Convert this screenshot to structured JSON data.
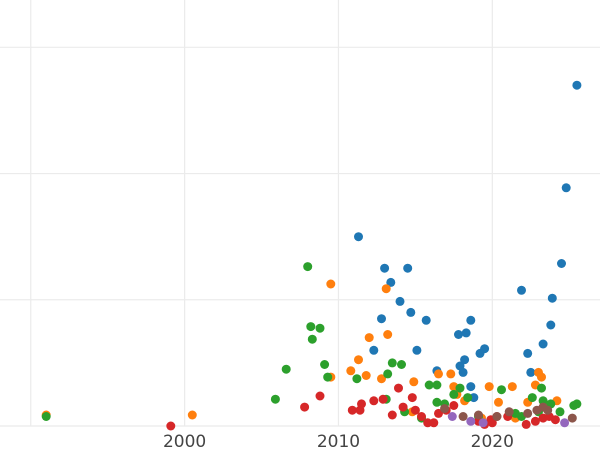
{
  "chart_data": {
    "type": "scatter",
    "title": "",
    "xlabel": "",
    "ylabel": "",
    "xlim": [
      1988,
      2027
    ],
    "ylim": [
      0,
      270
    ],
    "x_ticks": [
      2000,
      2010,
      2020
    ],
    "x_tick_labels": [
      "2000",
      "2010",
      "2020"
    ],
    "y_gridlines": [
      0,
      80,
      160,
      240
    ],
    "grid": true,
    "y_tick_labels_visible": false,
    "legend": "none",
    "series": [
      {
        "color": "#1f77b4",
        "points": [
          [
            2011.3,
            120
          ],
          [
            2013.0,
            100
          ],
          [
            2013.4,
            91
          ],
          [
            2014.0,
            79
          ],
          [
            2014.5,
            100
          ],
          [
            2014.7,
            72
          ],
          [
            2015.7,
            67
          ],
          [
            2012.8,
            68
          ],
          [
            2012.3,
            48
          ],
          [
            2015.1,
            48
          ],
          [
            2016.4,
            35
          ],
          [
            2017.8,
            58
          ],
          [
            2018.3,
            59
          ],
          [
            2018.6,
            67
          ],
          [
            2019.5,
            49
          ],
          [
            2019.2,
            46
          ],
          [
            2018.2,
            42
          ],
          [
            2017.9,
            38
          ],
          [
            2018.1,
            34
          ],
          [
            2018.6,
            25
          ],
          [
            2018.8,
            18
          ],
          [
            2021.9,
            86
          ],
          [
            2022.3,
            46
          ],
          [
            2022.5,
            34
          ],
          [
            2023.3,
            52
          ],
          [
            2023.8,
            64
          ],
          [
            2023.9,
            81
          ],
          [
            2024.5,
            103
          ],
          [
            2024.8,
            151
          ],
          [
            2025.5,
            216
          ]
        ]
      },
      {
        "color": "#ff7f0e",
        "points": [
          [
            1991.0,
            7
          ],
          [
            2000.5,
            7
          ],
          [
            2009.5,
            90
          ],
          [
            2009.5,
            31
          ],
          [
            2010.8,
            35
          ],
          [
            2011.3,
            42
          ],
          [
            2011.8,
            32
          ],
          [
            2012.0,
            56
          ],
          [
            2012.8,
            30
          ],
          [
            2013.1,
            87
          ],
          [
            2013.2,
            58
          ],
          [
            2014.9,
            28
          ],
          [
            2016.5,
            33
          ],
          [
            2017.3,
            33
          ],
          [
            2017.5,
            25
          ],
          [
            2017.7,
            20
          ],
          [
            2018.2,
            16
          ],
          [
            2019.8,
            25
          ],
          [
            2020.4,
            15
          ],
          [
            2021.3,
            25
          ],
          [
            2022.3,
            15
          ],
          [
            2022.8,
            26
          ],
          [
            2023.0,
            34
          ],
          [
            2023.2,
            31
          ],
          [
            2024.2,
            16
          ],
          [
            2014.8,
            9
          ],
          [
            2019.3,
            5
          ],
          [
            2021.5,
            5
          ]
        ]
      },
      {
        "color": "#2ca02c",
        "points": [
          [
            1991.0,
            6
          ],
          [
            2005.9,
            17
          ],
          [
            2006.6,
            36
          ],
          [
            2008.0,
            101
          ],
          [
            2008.2,
            63
          ],
          [
            2008.3,
            55
          ],
          [
            2008.8,
            62
          ],
          [
            2009.1,
            39
          ],
          [
            2009.3,
            31
          ],
          [
            2011.2,
            30
          ],
          [
            2013.2,
            33
          ],
          [
            2013.5,
            40
          ],
          [
            2014.1,
            39
          ],
          [
            2013.1,
            17
          ],
          [
            2015.4,
            5
          ],
          [
            2014.3,
            9
          ],
          [
            2015.9,
            26
          ],
          [
            2016.4,
            26
          ],
          [
            2016.4,
            15
          ],
          [
            2016.9,
            14
          ],
          [
            2017.5,
            20
          ],
          [
            2017.9,
            24
          ],
          [
            2018.4,
            18
          ],
          [
            2019.1,
            6
          ],
          [
            2020.6,
            23
          ],
          [
            2021.5,
            8
          ],
          [
            2021.9,
            6
          ],
          [
            2022.6,
            18
          ],
          [
            2023.0,
            9
          ],
          [
            2023.2,
            24
          ],
          [
            2023.3,
            16
          ],
          [
            2023.8,
            14
          ],
          [
            2024.4,
            9
          ],
          [
            2025.3,
            13
          ],
          [
            2025.5,
            14
          ]
        ]
      },
      {
        "color": "#d62728",
        "points": [
          [
            1999.1,
            0
          ],
          [
            2007.8,
            12
          ],
          [
            2008.8,
            19
          ],
          [
            2010.9,
            10
          ],
          [
            2011.4,
            10
          ],
          [
            2011.5,
            14
          ],
          [
            2012.3,
            16
          ],
          [
            2012.9,
            17
          ],
          [
            2013.5,
            7
          ],
          [
            2013.9,
            24
          ],
          [
            2014.2,
            12
          ],
          [
            2014.8,
            18
          ],
          [
            2015.0,
            10
          ],
          [
            2015.4,
            6
          ],
          [
            2015.8,
            2
          ],
          [
            2016.2,
            2
          ],
          [
            2016.5,
            8
          ],
          [
            2017.0,
            10
          ],
          [
            2017.5,
            13
          ],
          [
            2019.1,
            3
          ],
          [
            2019.5,
            1
          ],
          [
            2019.9,
            4
          ],
          [
            2020.0,
            2
          ],
          [
            2020.3,
            6
          ],
          [
            2021.0,
            6
          ],
          [
            2022.2,
            1
          ],
          [
            2022.8,
            3
          ],
          [
            2023.3,
            5
          ],
          [
            2023.7,
            6
          ],
          [
            2024.1,
            4
          ]
        ]
      },
      {
        "color": "#9467bd",
        "points": [
          [
            2017.4,
            6
          ],
          [
            2018.6,
            3
          ],
          [
            2019.4,
            2
          ],
          [
            2024.7,
            2
          ]
        ]
      },
      {
        "color": "#8c564b",
        "points": [
          [
            2016.9,
            11
          ],
          [
            2018.1,
            6
          ],
          [
            2019.1,
            7
          ],
          [
            2020.3,
            6
          ],
          [
            2021.1,
            9
          ],
          [
            2022.3,
            8
          ],
          [
            2022.9,
            10
          ],
          [
            2023.3,
            12
          ],
          [
            2023.6,
            10
          ],
          [
            2025.2,
            5
          ]
        ]
      }
    ]
  }
}
